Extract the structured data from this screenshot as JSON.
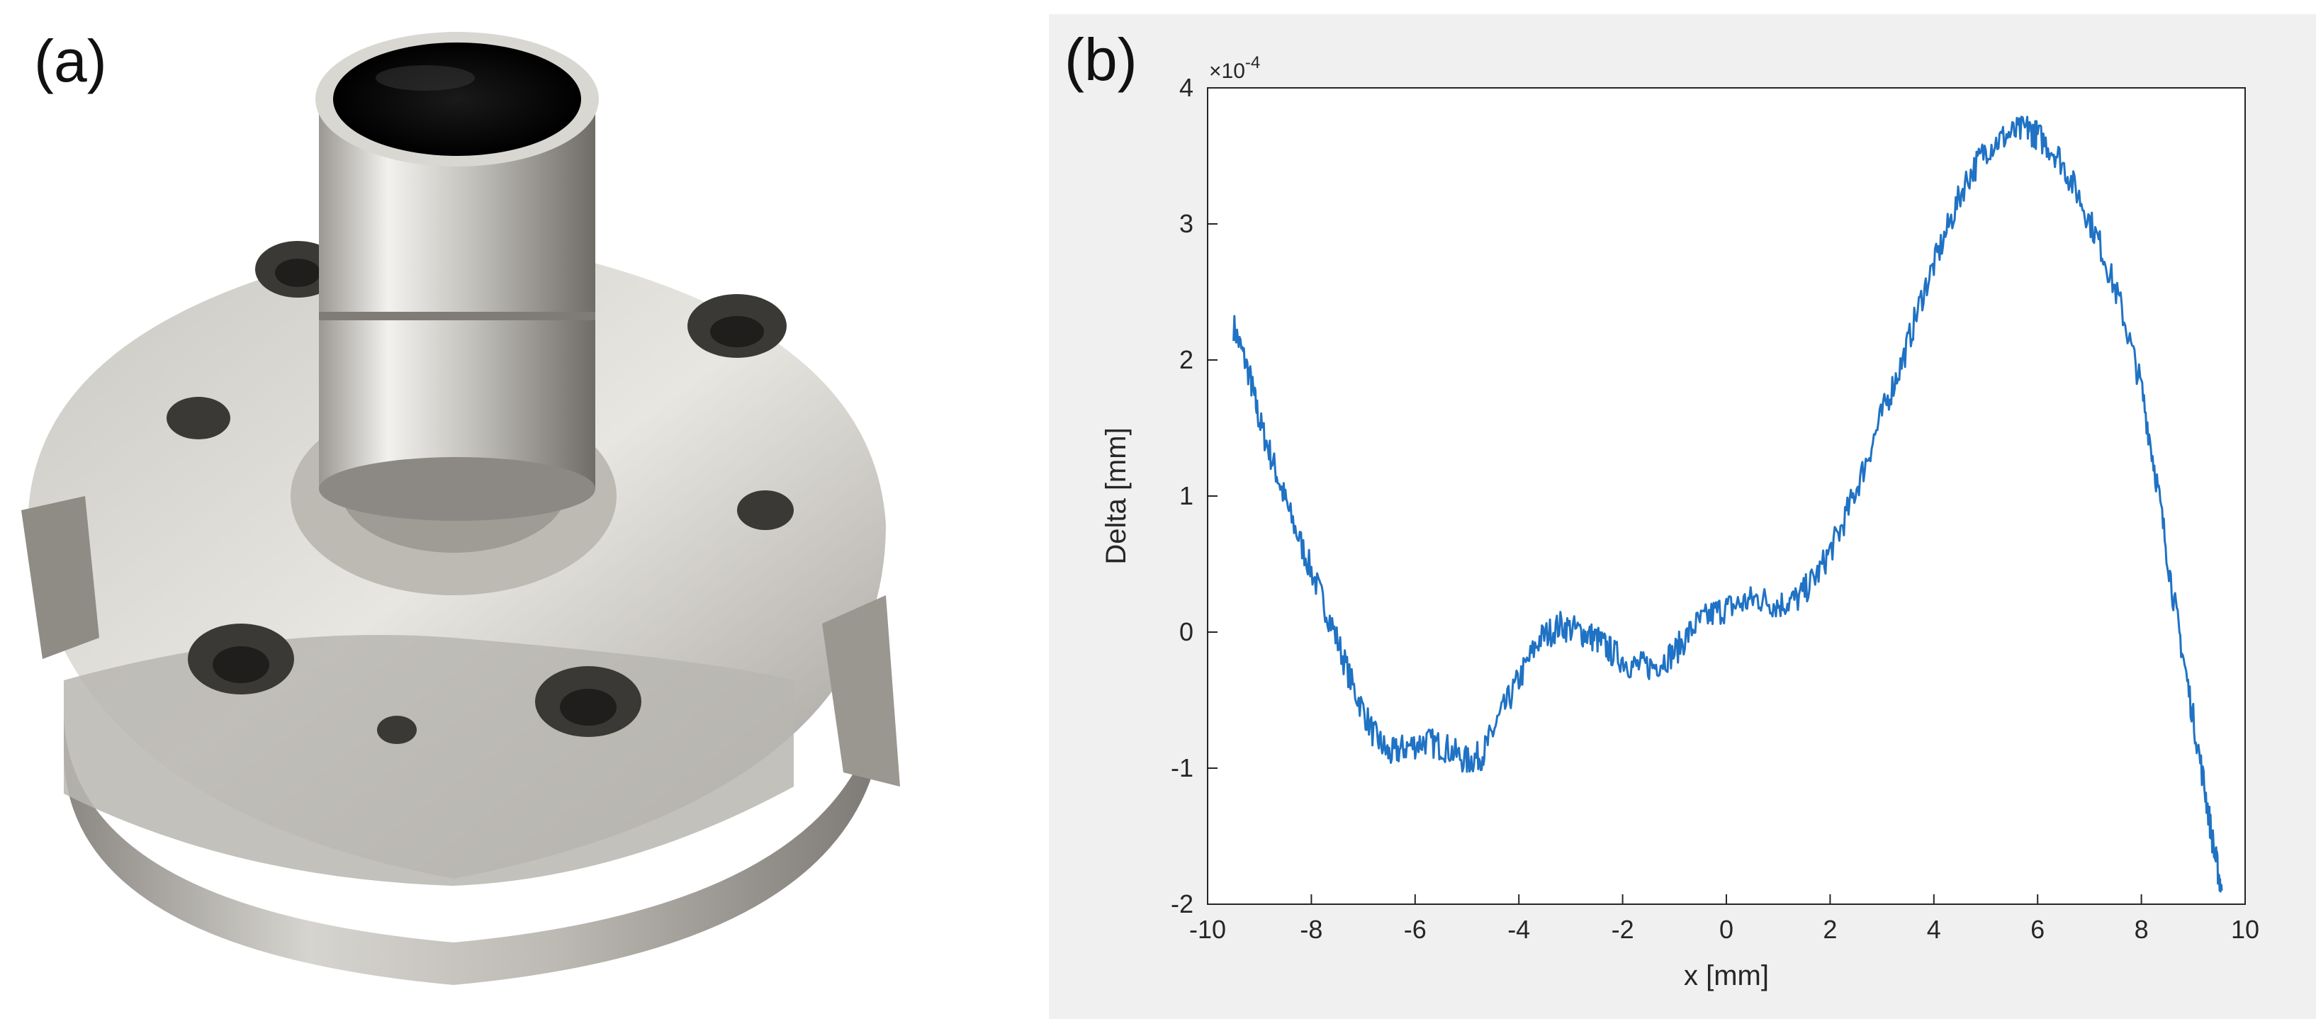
{
  "panels": {
    "a": {
      "label": "(a)"
    },
    "b": {
      "label": "(b)"
    }
  },
  "colors": {
    "line": "#1f72c4",
    "metal_light": "#d9d9d6",
    "metal_dark": "#7a7772",
    "chart_bg": "#f0f0f0",
    "plot_bg": "#ffffff"
  },
  "chart_data": {
    "type": "line",
    "xlabel": "x [mm]",
    "ylabel": "Delta [mm]",
    "y_multiplier": "×10",
    "y_multiplier_exp": "-4",
    "xlim": [
      -10,
      10
    ],
    "ylim": [
      -2,
      4
    ],
    "xticks": [
      -10,
      -8,
      -6,
      -4,
      -2,
      0,
      2,
      4,
      6,
      8,
      10
    ],
    "yticks": [
      -2,
      -1,
      0,
      1,
      2,
      3,
      4
    ],
    "grid": false,
    "series": [
      {
        "x": [
          -9.5,
          -9.2,
          -9.0,
          -8.7,
          -8.4,
          -8.0,
          -7.6,
          -7.2,
          -6.8,
          -6.5,
          -6.2,
          -5.8,
          -5.4,
          -5.0,
          -4.7,
          -4.4,
          -4.0,
          -3.6,
          -3.2,
          -2.8,
          -2.5,
          -2.2,
          -1.8,
          -1.4,
          -1.0,
          -0.6,
          -0.2,
          0.2,
          0.6,
          1.0,
          1.4,
          1.8,
          2.2,
          2.6,
          3.0,
          3.4,
          3.8,
          4.2,
          4.6,
          5.0,
          5.4,
          5.8,
          6.0,
          6.4,
          6.8,
          7.2,
          7.6,
          8.0,
          8.3,
          8.6,
          8.9,
          9.2,
          9.4,
          9.55
        ],
        "y": [
          2.25,
          1.9,
          1.55,
          1.2,
          0.85,
          0.45,
          0.05,
          -0.4,
          -0.75,
          -0.9,
          -0.85,
          -0.8,
          -0.85,
          -0.95,
          -0.9,
          -0.65,
          -0.35,
          -0.05,
          0.05,
          0.0,
          -0.05,
          -0.15,
          -0.25,
          -0.25,
          -0.15,
          0.05,
          0.15,
          0.2,
          0.25,
          0.2,
          0.25,
          0.45,
          0.75,
          1.15,
          1.6,
          2.0,
          2.5,
          2.9,
          3.3,
          3.55,
          3.65,
          3.7,
          3.65,
          3.5,
          3.2,
          2.85,
          2.4,
          1.8,
          1.1,
          0.3,
          -0.4,
          -1.1,
          -1.6,
          -1.9
        ]
      }
    ]
  }
}
